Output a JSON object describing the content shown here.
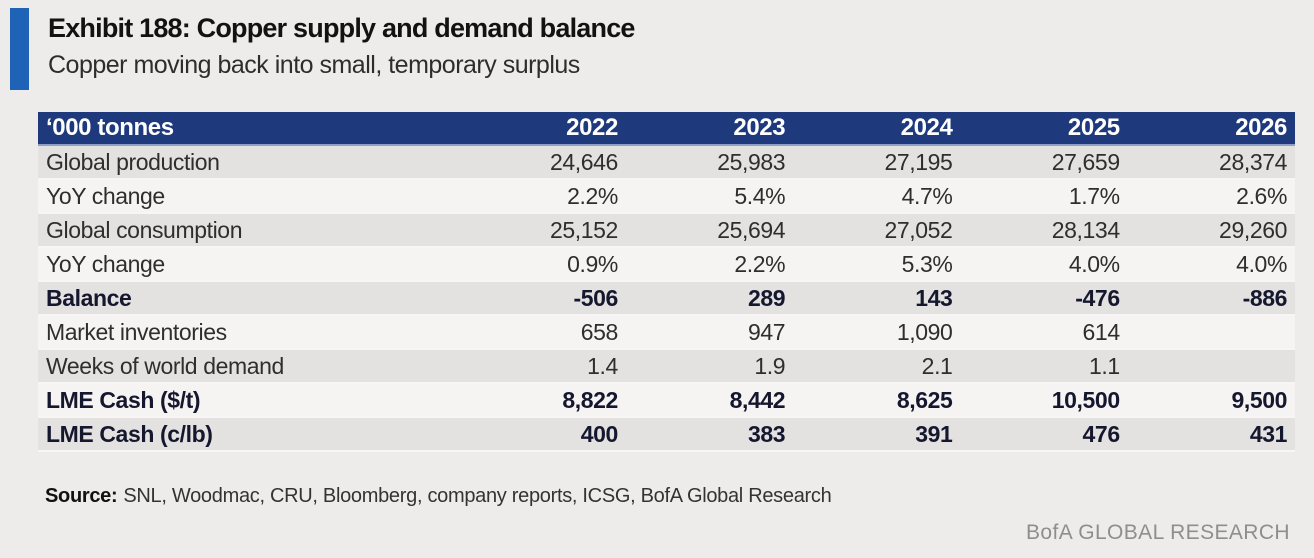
{
  "exhibit": {
    "title": "Exhibit 188: Copper supply and demand balance",
    "subtitle": "Copper moving back into small, temporary surplus"
  },
  "table": {
    "header": [
      "‘000 tonnes",
      "2022",
      "2023",
      "2024",
      "2025",
      "2026"
    ],
    "rows": [
      {
        "label": "Global production",
        "values": [
          "24,646",
          "25,983",
          "27,195",
          "27,659",
          "28,374"
        ],
        "bold": false,
        "negative_red": false
      },
      {
        "label": "YoY change",
        "values": [
          "2.2%",
          "5.4%",
          "4.7%",
          "1.7%",
          "2.6%"
        ],
        "bold": false,
        "negative_red": false
      },
      {
        "label": "Global consumption",
        "values": [
          "25,152",
          "25,694",
          "27,052",
          "28,134",
          "29,260"
        ],
        "bold": false,
        "negative_red": false
      },
      {
        "label": "YoY change",
        "values": [
          "0.9%",
          "2.2%",
          "5.3%",
          "4.0%",
          "4.0%"
        ],
        "bold": false,
        "negative_red": false
      },
      {
        "label": "Balance",
        "values": [
          "-506",
          "289",
          "143",
          "-476",
          "-886"
        ],
        "bold": true,
        "negative_red": true
      },
      {
        "label": "Market inventories",
        "values": [
          "658",
          "947",
          "1,090",
          "614",
          ""
        ],
        "bold": false,
        "negative_red": false
      },
      {
        "label": "Weeks of world demand",
        "values": [
          "1.4",
          "1.9",
          "2.1",
          "1.1",
          ""
        ],
        "bold": false,
        "negative_red": false
      },
      {
        "label": "LME Cash ($/t)",
        "values": [
          "8,822",
          "8,442",
          "8,625",
          "10,500",
          "9,500"
        ],
        "bold": true,
        "negative_red": false
      },
      {
        "label": "LME Cash (c/lb)",
        "values": [
          "400",
          "383",
          "391",
          "476",
          "431"
        ],
        "bold": true,
        "negative_red": false
      }
    ]
  },
  "source": {
    "label": "Source:",
    "text": "SNL, Woodmac, CRU, Bloomberg, company reports, ICSG, BofA Global Research"
  },
  "footer": {
    "brand": "BofA GLOBAL RESEARCH"
  },
  "colors": {
    "header_navy": "#1e3a7d",
    "accent_blue": "#1f63b7",
    "negative_red": "#bd1742",
    "stripe_dark": "#e3e2e0",
    "stripe_light": "#f5f4f2",
    "page_background": "#edecea",
    "footer_gray": "#8e8e8e"
  },
  "chart_data": {
    "type": "table",
    "title": "Exhibit 188: Copper supply and demand balance",
    "subtitle": "Copper moving back into small, temporary surplus",
    "unit": "'000 tonnes",
    "columns": [
      "2022",
      "2023",
      "2024",
      "2025",
      "2026"
    ],
    "series": [
      {
        "name": "Global production",
        "values": [
          24646,
          25983,
          27195,
          27659,
          28374
        ]
      },
      {
        "name": "YoY change (production, %)",
        "values": [
          2.2,
          5.4,
          4.7,
          1.7,
          2.6
        ]
      },
      {
        "name": "Global consumption",
        "values": [
          25152,
          25694,
          27052,
          28134,
          29260
        ]
      },
      {
        "name": "YoY change (consumption, %)",
        "values": [
          0.9,
          2.2,
          5.3,
          4.0,
          4.0
        ]
      },
      {
        "name": "Balance",
        "values": [
          -506,
          289,
          143,
          -476,
          -886
        ]
      },
      {
        "name": "Market inventories",
        "values": [
          658,
          947,
          1090,
          614,
          null
        ]
      },
      {
        "name": "Weeks of world demand",
        "values": [
          1.4,
          1.9,
          2.1,
          1.1,
          null
        ]
      },
      {
        "name": "LME Cash ($/t)",
        "values": [
          8822,
          8442,
          8625,
          10500,
          9500
        ]
      },
      {
        "name": "LME Cash (c/lb)",
        "values": [
          400,
          383,
          391,
          476,
          431
        ]
      }
    ]
  }
}
